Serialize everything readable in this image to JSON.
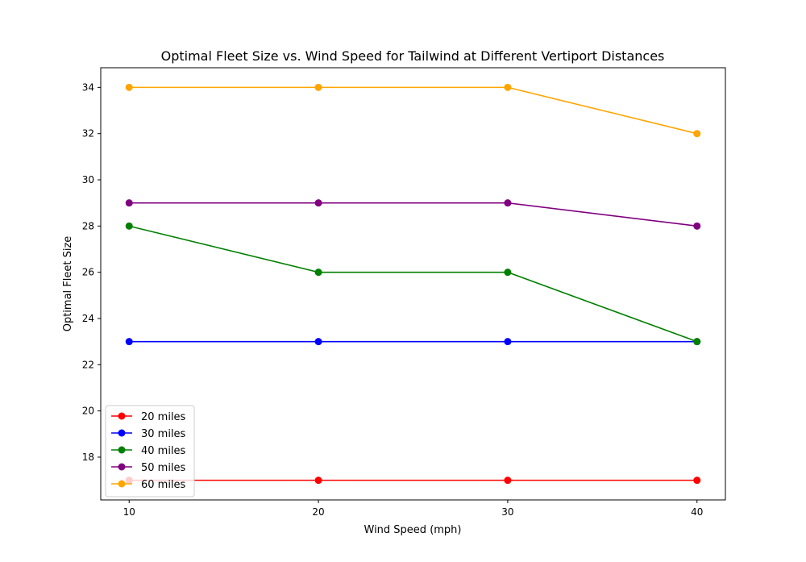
{
  "chart_data": {
    "type": "line",
    "title": "Optimal Fleet Size vs. Wind Speed for Tailwind at Different Vertiport Distances",
    "xlabel": "Wind Speed (mph)",
    "ylabel": "Optimal Fleet Size",
    "x": [
      10,
      20,
      30,
      40
    ],
    "xticks": [
      10,
      20,
      30,
      40
    ],
    "yticks": [
      18,
      20,
      22,
      24,
      26,
      28,
      30,
      32,
      34
    ],
    "xlim": [
      8.5,
      41.5
    ],
    "ylim": [
      16.15,
      34.85
    ],
    "grid": false,
    "legend_position": "lower-left",
    "series": [
      {
        "name": "20 miles",
        "color": "#ff0000",
        "values": [
          17,
          17,
          17,
          17
        ]
      },
      {
        "name": "30 miles",
        "color": "#0000ff",
        "values": [
          23,
          23,
          23,
          23
        ]
      },
      {
        "name": "40 miles",
        "color": "#008000",
        "values": [
          28,
          26,
          26,
          23
        ]
      },
      {
        "name": "50 miles",
        "color": "#800080",
        "values": [
          29,
          29,
          29,
          28
        ]
      },
      {
        "name": "60 miles",
        "color": "#ffa500",
        "values": [
          34,
          34,
          34,
          32
        ]
      }
    ]
  }
}
